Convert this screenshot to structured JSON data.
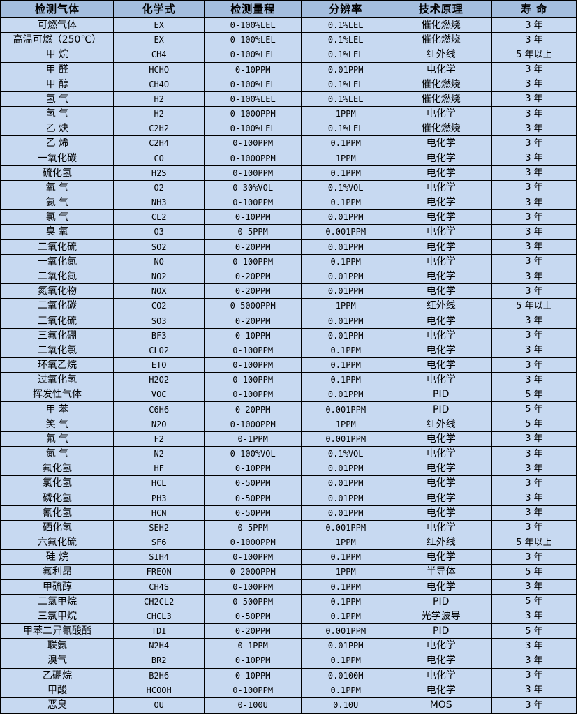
{
  "table": {
    "columns": [
      "检测气体",
      "化学式",
      "检测量程",
      "分辨率",
      "技术原理",
      "寿 命"
    ],
    "column_names": [
      "gas-name",
      "chemical-formula",
      "detection-range",
      "resolution",
      "technology",
      "lifespan"
    ],
    "rows": [
      [
        "可燃气体",
        "EX",
        "0-100%LEL",
        "0.1%LEL",
        "催化燃烧",
        "3 年"
      ],
      [
        "高温可燃（250℃）",
        "EX",
        "0-100%LEL",
        "0.1%LEL",
        "催化燃烧",
        "3 年"
      ],
      [
        "甲 烷",
        "CH4",
        "0-100%LEL",
        "0.1%LEL",
        "红外线",
        "5 年以上"
      ],
      [
        "甲 醛",
        "HCHO",
        "0-10PPM",
        "0.01PPM",
        "电化学",
        "3 年"
      ],
      [
        "甲 醇",
        "CH4O",
        "0-100%LEL",
        "0.1%LEL",
        "催化燃烧",
        "3 年"
      ],
      [
        "氢 气",
        "H2",
        "0-100%LEL",
        "0.1%LEL",
        "催化燃烧",
        "3 年"
      ],
      [
        "氢 气",
        "H2",
        "0-1000PPM",
        "1PPM",
        "电化学",
        "3 年"
      ],
      [
        "乙 炔",
        "C2H2",
        "0-100%LEL",
        "0.1%LEL",
        "催化燃烧",
        "3 年"
      ],
      [
        "乙 烯",
        "C2H4",
        "0-100PPM",
        "0.1PPM",
        "电化学",
        "3 年"
      ],
      [
        "一氧化碳",
        "CO",
        "0-1000PPM",
        "1PPM",
        "电化学",
        "3 年"
      ],
      [
        "硫化氢",
        "H2S",
        "0-100PPM",
        "0.1PPM",
        "电化学",
        "3 年"
      ],
      [
        "氧 气",
        "O2",
        "0-30%VOL",
        "0.1%VOL",
        "电化学",
        "3 年"
      ],
      [
        "氨 气",
        "NH3",
        "0-100PPM",
        "0.1PPM",
        "电化学",
        "3 年"
      ],
      [
        "氯 气",
        "CL2",
        "0-10PPM",
        "0.01PPM",
        "电化学",
        "3 年"
      ],
      [
        "臭 氧",
        "O3",
        "0-5PPM",
        "0.001PPM",
        "电化学",
        "3 年"
      ],
      [
        "二氧化硫",
        "SO2",
        "0-20PPM",
        "0.01PPM",
        "电化学",
        "3 年"
      ],
      [
        "一氧化氮",
        "NO",
        "0-100PPM",
        "0.1PPM",
        "电化学",
        "3 年"
      ],
      [
        "二氧化氮",
        "NO2",
        "0-20PPM",
        "0.01PPM",
        "电化学",
        "3 年"
      ],
      [
        "氮氧化物",
        "NOX",
        "0-20PPM",
        "0.01PPM",
        "电化学",
        "3 年"
      ],
      [
        "二氧化碳",
        "CO2",
        "0-5000PPM",
        "1PPM",
        "红外线",
        "5 年以上"
      ],
      [
        "三氧化硫",
        "SO3",
        "0-20PPM",
        "0.01PPM",
        "电化学",
        "3 年"
      ],
      [
        "三氟化硼",
        "BF3",
        "0-10PPM",
        "0.01PPM",
        "电化学",
        "3 年"
      ],
      [
        "二氧化氯",
        "CLO2",
        "0-100PPM",
        "0.1PPM",
        "电化学",
        "3 年"
      ],
      [
        "环氧乙烷",
        "ETO",
        "0-100PPM",
        "0.1PPM",
        "电化学",
        "3 年"
      ],
      [
        "过氧化氢",
        "H2O2",
        "0-100PPM",
        "0.1PPM",
        "电化学",
        "3 年"
      ],
      [
        "挥发性气体",
        "VOC",
        "0-100PPM",
        "0.01PPM",
        "PID",
        "5 年"
      ],
      [
        "甲 苯",
        "C6H6",
        "0-20PPM",
        "0.001PPM",
        "PID",
        "5 年"
      ],
      [
        "笑 气",
        "N2O",
        "0-1000PPM",
        "1PPM",
        "红外线",
        "5 年"
      ],
      [
        "氟 气",
        "F2",
        "0-1PPM",
        "0.001PPM",
        "电化学",
        "3 年"
      ],
      [
        "氮 气",
        "N2",
        "0-100%VOL",
        "0.1%VOL",
        "电化学",
        "3 年"
      ],
      [
        "氟化氢",
        "HF",
        "0-10PPM",
        "0.01PPM",
        "电化学",
        "3 年"
      ],
      [
        "氯化氢",
        "HCL",
        "0-50PPM",
        "0.01PPM",
        "电化学",
        "3 年"
      ],
      [
        "磷化氢",
        "PH3",
        "0-50PPM",
        "0.01PPM",
        "电化学",
        "3 年"
      ],
      [
        "氰化氢",
        "HCN",
        "0-50PPM",
        "0.01PPM",
        "电化学",
        "3 年"
      ],
      [
        "硒化氢",
        "SEH2",
        "0-5PPM",
        "0.001PPM",
        "电化学",
        "3 年"
      ],
      [
        "六氟化硫",
        "SF6",
        "0-1000PPM",
        "1PPM",
        "红外线",
        "5 年以上"
      ],
      [
        "硅 烷",
        "SIH4",
        "0-100PPM",
        "0.1PPM",
        "电化学",
        "3 年"
      ],
      [
        "氟利昂",
        "FREON",
        "0-2000PPM",
        "1PPM",
        "半导体",
        "5 年"
      ],
      [
        "甲硫醇",
        "CH4S",
        "0-100PPM",
        "0.1PPM",
        "电化学",
        "3 年"
      ],
      [
        "二氯甲烷",
        "CH2CL2",
        "0-500PPM",
        "0.1PPM",
        "PID",
        "5 年"
      ],
      [
        "三氯甲烷",
        "CHCL3",
        "0-50PPM",
        "0.1PPM",
        "光学波导",
        "3 年"
      ],
      [
        "甲苯二异氰酸酯",
        "TDI",
        "0-20PPM",
        "0.001PPM",
        "PID",
        "5 年"
      ],
      [
        "联氨",
        "N2H4",
        "0-1PPM",
        "0.01PPM",
        "电化学",
        "3 年"
      ],
      [
        "溴气",
        "BR2",
        "0-10PPM",
        "0.1PPM",
        "电化学",
        "3 年"
      ],
      [
        "乙硼烷",
        "B2H6",
        "0-10PPM",
        "0.0100M",
        "电化学",
        "3 年"
      ],
      [
        "甲酸",
        "HCOOH",
        "0-100PPM",
        "0.1PPM",
        "电化学",
        "3 年"
      ],
      [
        "恶臭",
        "OU",
        "0-100U",
        "0.10U",
        "MOS",
        "3 年"
      ]
    ]
  },
  "colors": {
    "header_bg": "#a4bedf",
    "row_bg": "#c7d9f1",
    "border": "#000000",
    "text": "#000000"
  }
}
